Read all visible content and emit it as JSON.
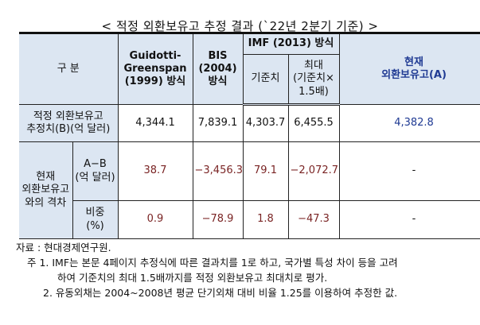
{
  "title": "< 적정 외환보유고 추정 결과 (`22년 2분기 기준) >",
  "header": {
    "category": "구 분",
    "gg": [
      "Guidotti-",
      "Greenspan",
      "(1999) 방식"
    ],
    "bis": [
      "BIS",
      "(2004)",
      "방식"
    ],
    "imf": "IMF (2013) 방식",
    "imf_base": "기준치",
    "imf_max": [
      "최대",
      "(기준치×",
      "1.5배)"
    ],
    "current": [
      "현재",
      "외환보유고(A)"
    ]
  },
  "rows": {
    "estimate": {
      "label": [
        "적정 외환보유고",
        "추정치(B)(억 달러)"
      ],
      "values": [
        "4,344.1",
        "7,839.1",
        "4,303.7",
        "6,455.5",
        "4,382.8"
      ]
    },
    "gap_label": [
      "현재",
      "외환보유고",
      "와의 격차"
    ],
    "diff": {
      "label": [
        "A−B",
        "(억 달러)"
      ],
      "values": [
        "38.7",
        "−3,456.3",
        "79.1",
        "−2,072.7",
        "-"
      ]
    },
    "ratio": {
      "label": [
        "비중",
        "(%)"
      ],
      "values": [
        "0.9",
        "−78.9",
        "1.8",
        "−47.3",
        "-"
      ]
    }
  },
  "notes": {
    "source": "자료 : 현대경제연구원.",
    "note1a": "주 1. IMF는 본문 4페이지 추정식에 따른 결과치를 1로 하고, 국가별 특성 차이 등을 고려",
    "note1b": "하여 기준치의 최대 1.5배까지를 적정 외환보유고 최대치로 평가.",
    "note2": "2. 유동외채는 2004~2008년 평균 단기외채 대비 비율 1.25를 이용하여 추정한 값."
  },
  "colors": {
    "header_bg": "#dce6f2",
    "current_text": "#1f3a93",
    "negative_values": "#7a2424"
  }
}
